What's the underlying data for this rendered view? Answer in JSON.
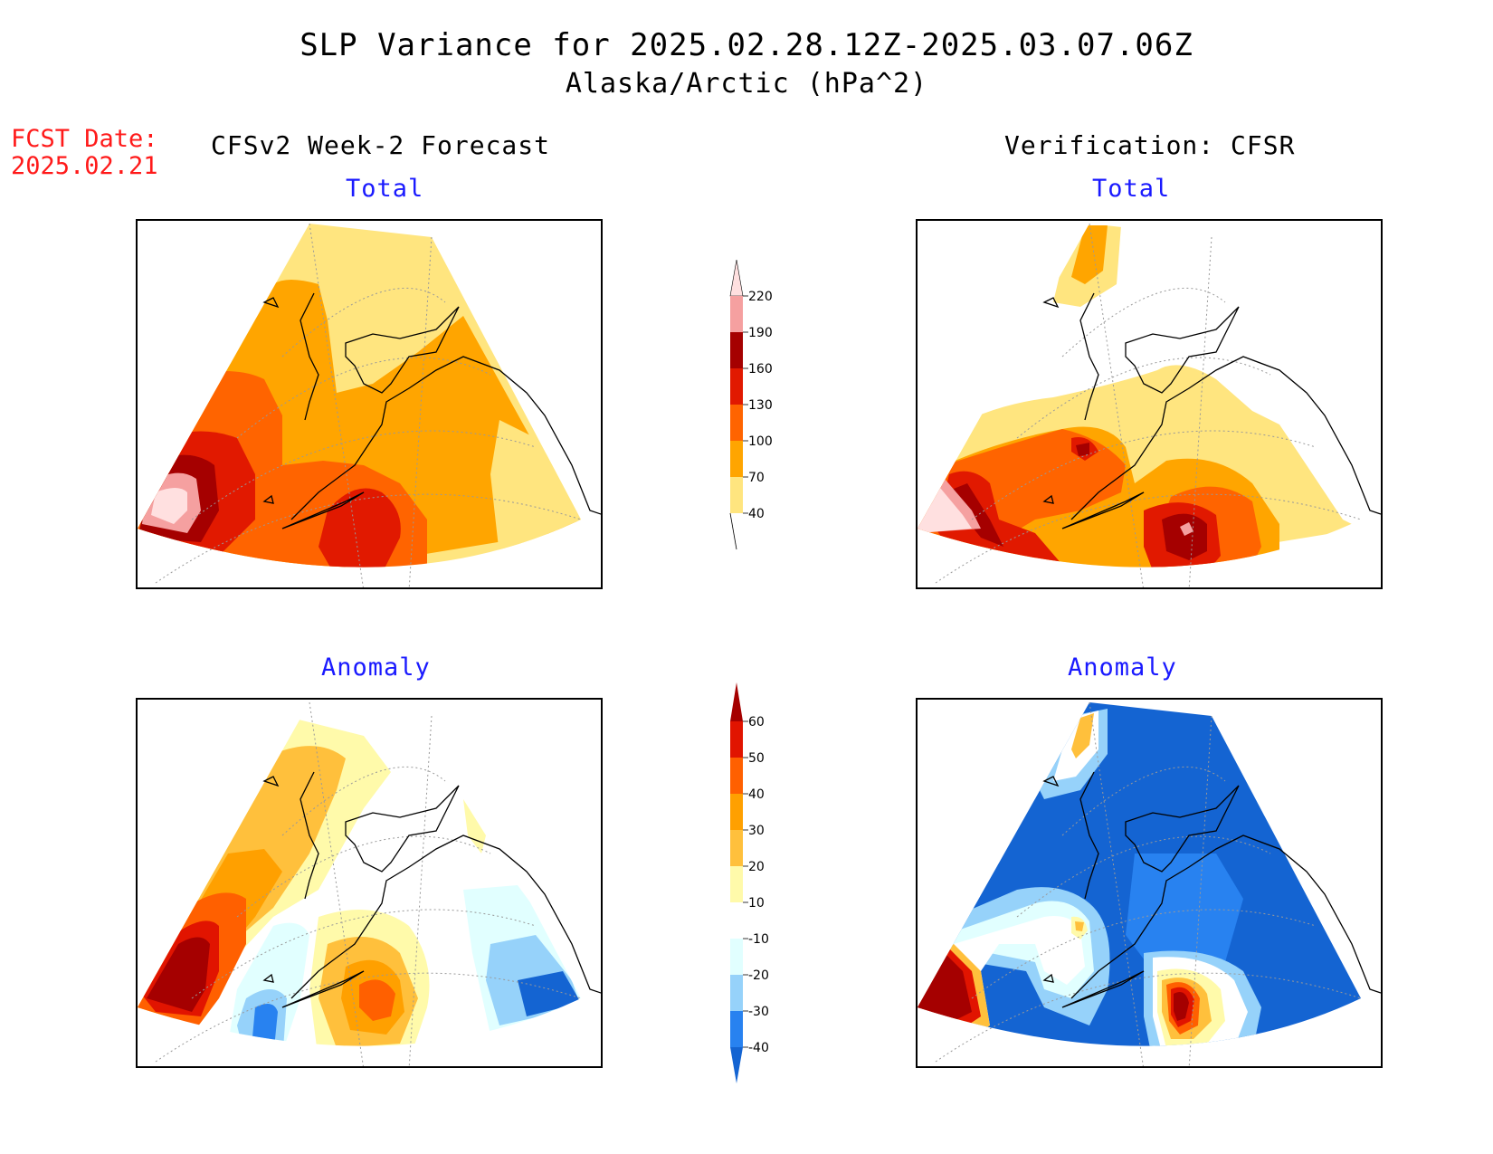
{
  "title": "SLP Variance for 2025.02.28.12Z-2025.03.07.06Z",
  "subtitle": "Alaska/Arctic (hPa^2)",
  "fcst": {
    "label": "FCST Date:",
    "date": "2025.02.21"
  },
  "columns": {
    "left": "CFSv2 Week-2 Forecast",
    "right": "Verification: CFSR"
  },
  "panels": {
    "fcst_total": "Total",
    "verif_total": "Total",
    "fcst_anomaly": "Anomaly",
    "verif_anomaly": "Anomaly"
  },
  "colorbars": {
    "total": {
      "labels": [
        "40",
        "70",
        "100",
        "130",
        "160",
        "190",
        "220"
      ],
      "colors": [
        "#ffe57f",
        "#ffa500",
        "#ff6400",
        "#e11900",
        "#a50000",
        "#f5a0a0",
        "#ffe0e0"
      ]
    },
    "anomaly": {
      "labels": [
        "-40",
        "-30",
        "-20",
        "-10",
        "10",
        "20",
        "30",
        "40",
        "50",
        "60"
      ],
      "colors": [
        "#1464d2",
        "#2882f0",
        "#96d2fa",
        "#e1ffff",
        "#ffffff",
        "#fffaaa",
        "#ffc03c",
        "#ffa000",
        "#ff6000",
        "#e11400",
        "#a50000"
      ]
    }
  }
}
